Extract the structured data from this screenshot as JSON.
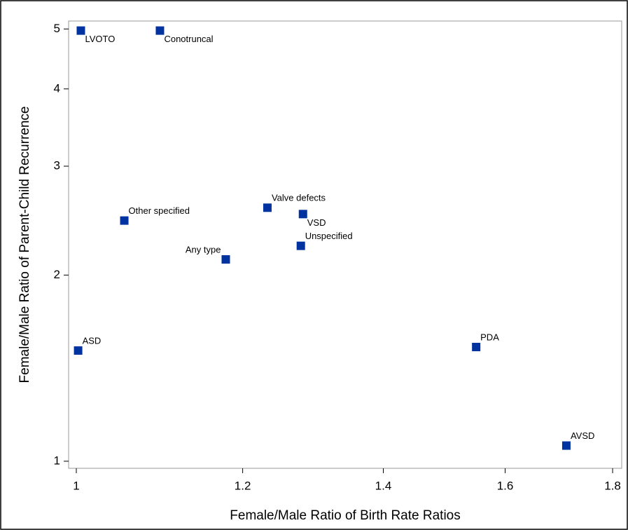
{
  "chart_data": {
    "type": "scatter",
    "x_label": "Female/Male Ratio of Birth Rate Ratios",
    "y_label": "Female/Male Ratio of Parent-Child Recurrence",
    "log_x": true,
    "log_y": true,
    "grid": false,
    "xlim": [
      0.9916,
      1.818
    ],
    "ylim": [
      0.974,
      5.15
    ],
    "xticks": [
      1,
      1.2,
      1.4,
      1.6,
      1.8
    ],
    "yticks": [
      1,
      2,
      3,
      4,
      5
    ],
    "series": [
      {
        "color": "#0033a0",
        "x": [
          1.005,
          1.096,
          1.054,
          1.233,
          1.282,
          1.279,
          1.178,
          1.002,
          1.55,
          1.711
        ],
        "values": [
          4.97,
          4.97,
          2.45,
          2.57,
          2.51,
          2.23,
          2.12,
          1.51,
          1.53,
          1.06
        ],
        "point_labels": [
          "LVOTO",
          "Conotruncal",
          "Other specified",
          "Valve defects",
          "VSD",
          "Unspecified",
          "Any type",
          "ASD",
          "PDA",
          "AVSD"
        ]
      }
    ]
  }
}
